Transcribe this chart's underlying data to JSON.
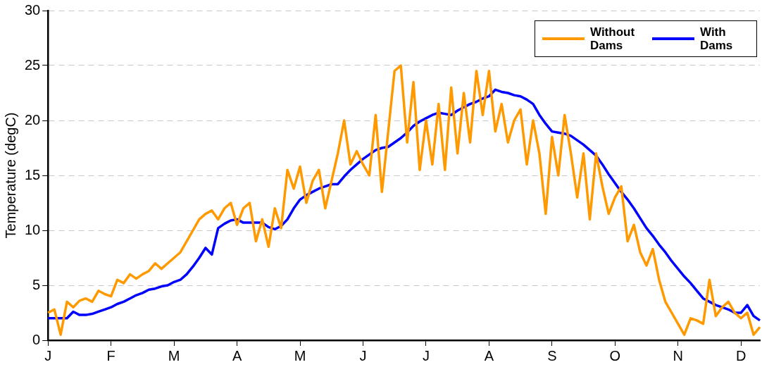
{
  "chart_data": {
    "type": "line",
    "ylabel": "Temperature (degC)",
    "categories": [
      "J",
      null,
      null,
      null,
      null,
      null,
      null,
      null,
      null,
      null,
      "F",
      null,
      null,
      null,
      null,
      null,
      null,
      null,
      null,
      null,
      "M",
      null,
      null,
      null,
      null,
      null,
      null,
      null,
      null,
      null,
      "A",
      null,
      null,
      null,
      null,
      null,
      null,
      null,
      null,
      null,
      "M",
      null,
      null,
      null,
      null,
      null,
      null,
      null,
      null,
      null,
      "J",
      null,
      null,
      null,
      null,
      null,
      null,
      null,
      null,
      null,
      "J",
      null,
      null,
      null,
      null,
      null,
      null,
      null,
      null,
      null,
      "A",
      null,
      null,
      null,
      null,
      null,
      null,
      null,
      null,
      null,
      "S",
      null,
      null,
      null,
      null,
      null,
      null,
      null,
      null,
      null,
      "O",
      null,
      null,
      null,
      null,
      null,
      null,
      null,
      null,
      null,
      "N",
      null,
      null,
      null,
      null,
      null,
      null,
      null,
      null,
      null,
      "D",
      null,
      null,
      null
    ],
    "ylim": [
      0,
      30
    ],
    "yticks": [
      0,
      5,
      10,
      15,
      20,
      25,
      30
    ],
    "grid": "y",
    "legend": "top right",
    "marker": "none",
    "line_style": "solid",
    "series": [
      {
        "name": "Without Dams",
        "color": "#ff9900",
        "values": [
          2.5,
          2.8,
          0.5,
          3.5,
          3.0,
          3.6,
          3.8,
          3.5,
          4.5,
          4.2,
          4.0,
          5.5,
          5.2,
          6.0,
          5.6,
          6.0,
          6.3,
          7.0,
          6.5,
          7.0,
          7.5,
          8.0,
          9.0,
          10.0,
          11.0,
          11.5,
          11.8,
          11.0,
          12.0,
          12.5,
          10.5,
          12.0,
          12.5,
          9.0,
          11.0,
          8.5,
          12.0,
          10.2,
          15.5,
          13.8,
          15.8,
          12.5,
          14.5,
          15.5,
          12.0,
          14.5,
          17.0,
          20.0,
          16.0,
          17.2,
          16.0,
          15.0,
          20.5,
          13.5,
          19.0,
          24.5,
          25.0,
          18.0,
          23.5,
          15.5,
          20.0,
          16.0,
          21.5,
          15.5,
          23.0,
          17.0,
          22.5,
          18.0,
          24.5,
          20.5,
          24.5,
          19.0,
          21.5,
          18.0,
          20.0,
          21.0,
          16.0,
          20.0,
          17.0,
          11.5,
          18.5,
          15.0,
          20.5,
          17.0,
          13.0,
          17.0,
          11.0,
          17.0,
          14.0,
          11.5,
          13.0,
          14.0,
          9.0,
          10.5,
          8.0,
          6.8,
          8.3,
          5.5,
          3.5,
          2.5,
          1.5,
          0.5,
          2.0,
          1.8,
          1.5,
          5.5,
          2.2,
          3.0,
          3.5,
          2.5,
          2.0,
          2.5,
          0.5,
          1.2
        ]
      },
      {
        "name": "With Dams",
        "color": "#0000ff",
        "values": [
          2.0,
          2.0,
          2.0,
          2.0,
          2.6,
          2.3,
          2.3,
          2.4,
          2.6,
          2.8,
          3.0,
          3.3,
          3.5,
          3.8,
          4.1,
          4.3,
          4.6,
          4.7,
          4.9,
          5.0,
          5.3,
          5.5,
          6.0,
          6.7,
          7.5,
          8.4,
          7.8,
          10.2,
          10.6,
          10.9,
          11.0,
          10.7,
          10.7,
          10.7,
          10.7,
          10.3,
          10.1,
          10.4,
          11.0,
          12.0,
          12.8,
          13.2,
          13.5,
          13.8,
          14.0,
          14.2,
          14.2,
          14.9,
          15.5,
          16.0,
          16.5,
          16.9,
          17.3,
          17.5,
          17.6,
          18.0,
          18.4,
          18.9,
          19.5,
          19.9,
          20.2,
          20.5,
          20.7,
          20.6,
          20.5,
          20.9,
          21.2,
          21.5,
          21.7,
          22.0,
          22.2,
          22.8,
          22.6,
          22.5,
          22.3,
          22.2,
          21.9,
          21.5,
          20.5,
          19.7,
          19.0,
          18.9,
          18.8,
          18.6,
          18.2,
          17.8,
          17.3,
          16.8,
          16.0,
          15.1,
          14.3,
          13.5,
          12.8,
          12.0,
          11.1,
          10.2,
          9.5,
          8.7,
          8.0,
          7.2,
          6.5,
          5.8,
          5.2,
          4.5,
          3.8,
          3.5,
          3.2,
          3.0,
          2.8,
          2.5,
          2.5,
          3.2,
          2.2,
          1.8
        ]
      }
    ]
  }
}
